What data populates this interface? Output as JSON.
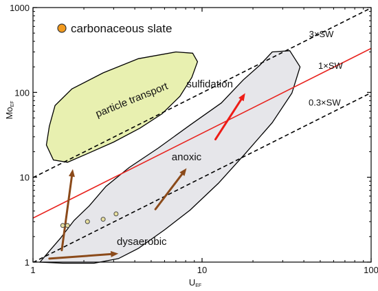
{
  "chart_data": {
    "type": "scatter",
    "x_scale": "log",
    "y_scale": "log",
    "xlim": [
      1,
      100
    ],
    "ylim": [
      1,
      1000
    ],
    "x_ticks": [
      1,
      10,
      100
    ],
    "y_ticks": [
      1,
      10,
      100,
      1000
    ],
    "x_tick_labels": [
      "1",
      "10",
      "100"
    ],
    "y_tick_labels": [
      "1",
      "10",
      "100",
      "1000"
    ],
    "xlabel_main": "U",
    "xlabel_sub": "EF",
    "ylabel_main": "Mo",
    "ylabel_sub": "EF",
    "legend": {
      "label": "carbonaceous slate",
      "color": "#f29a1e",
      "placement": "top-left"
    },
    "series": [
      {
        "name": "carbonaceous slate",
        "color": "#e8e0a0",
        "points": [
          [
            1.5,
            2.7
          ],
          [
            1.6,
            2.7
          ],
          [
            2.1,
            3.0
          ],
          [
            2.6,
            3.2
          ],
          [
            3.1,
            3.7
          ]
        ]
      }
    ],
    "reference_lines": [
      {
        "label": "3×SW",
        "slope": 9.9,
        "color": "#000000",
        "style": "dashed",
        "label_at": [
          60,
          450
        ]
      },
      {
        "label": "1×SW",
        "slope": 3.3,
        "color": "#e8231e",
        "style": "solid",
        "label_at": [
          68,
          190
        ]
      },
      {
        "label": "0.3×SW",
        "slope": 0.99,
        "color": "#000000",
        "style": "dashed",
        "label_at": [
          66,
          70
        ]
      }
    ],
    "regions": [
      {
        "label": "particle transport",
        "fill": "#e8f0b0",
        "stroke": "#000000",
        "polygon": [
          [
            1.25,
            40
          ],
          [
            1.35,
            70
          ],
          [
            1.7,
            110
          ],
          [
            2.6,
            170
          ],
          [
            4.2,
            250
          ],
          [
            7,
            300
          ],
          [
            8.8,
            290
          ],
          [
            9.4,
            230
          ],
          [
            8.7,
            150
          ],
          [
            7.4,
            90
          ],
          [
            5.8,
            56
          ],
          [
            4.3,
            38
          ],
          [
            3.0,
            26
          ],
          [
            2.1,
            19
          ],
          [
            1.6,
            15
          ],
          [
            1.32,
            16
          ],
          [
            1.2,
            24
          ]
        ]
      },
      {
        "label": "",
        "fill": "#e6e6ea",
        "stroke": "#000000",
        "polygon": [
          [
            1.1,
            1.0
          ],
          [
            1.25,
            1.35
          ],
          [
            1.45,
            1.9
          ],
          [
            1.75,
            3.1
          ],
          [
            2.15,
            4.6
          ],
          [
            2.7,
            7.8
          ],
          [
            3.7,
            13
          ],
          [
            5.5,
            22
          ],
          [
            8.6,
            42
          ],
          [
            13,
            75
          ],
          [
            17.5,
            140
          ],
          [
            22,
            210
          ],
          [
            26,
            300
          ],
          [
            33,
            310
          ],
          [
            38,
            200
          ],
          [
            34,
            98
          ],
          [
            26,
            44
          ],
          [
            18,
            19
          ],
          [
            12.5,
            8.5
          ],
          [
            8.5,
            4.1
          ],
          [
            6,
            2.4
          ],
          [
            4.2,
            1.45
          ],
          [
            3.2,
            1.1
          ],
          [
            2.3,
            0.97
          ],
          [
            1.5,
            0.97
          ]
        ]
      }
    ],
    "arrows": [
      {
        "from": [
          1.48,
          1.38
        ],
        "to": [
          1.72,
          12.5
        ],
        "color": "#8b4a1a"
      },
      {
        "from": [
          1.25,
          1.1
        ],
        "to": [
          3.2,
          1.26
        ],
        "color": "#8b4a1a"
      },
      {
        "from": [
          5.3,
          4.2
        ],
        "to": [
          8.1,
          12.8
        ],
        "color": "#8b4a1a"
      },
      {
        "from": [
          12.0,
          28
        ],
        "to": [
          18.0,
          98
        ],
        "color": "#ee1c16"
      }
    ],
    "annotations": [
      {
        "text": "sulfidation",
        "at": [
          11.1,
          115
        ]
      },
      {
        "text": "anoxic",
        "at": [
          8.1,
          15.8
        ]
      },
      {
        "text": "dysaerobic",
        "at": [
          4.4,
          1.6
        ]
      },
      {
        "text": "particle transport",
        "at": [
          3.9,
          75
        ],
        "rotate": -22
      }
    ]
  }
}
